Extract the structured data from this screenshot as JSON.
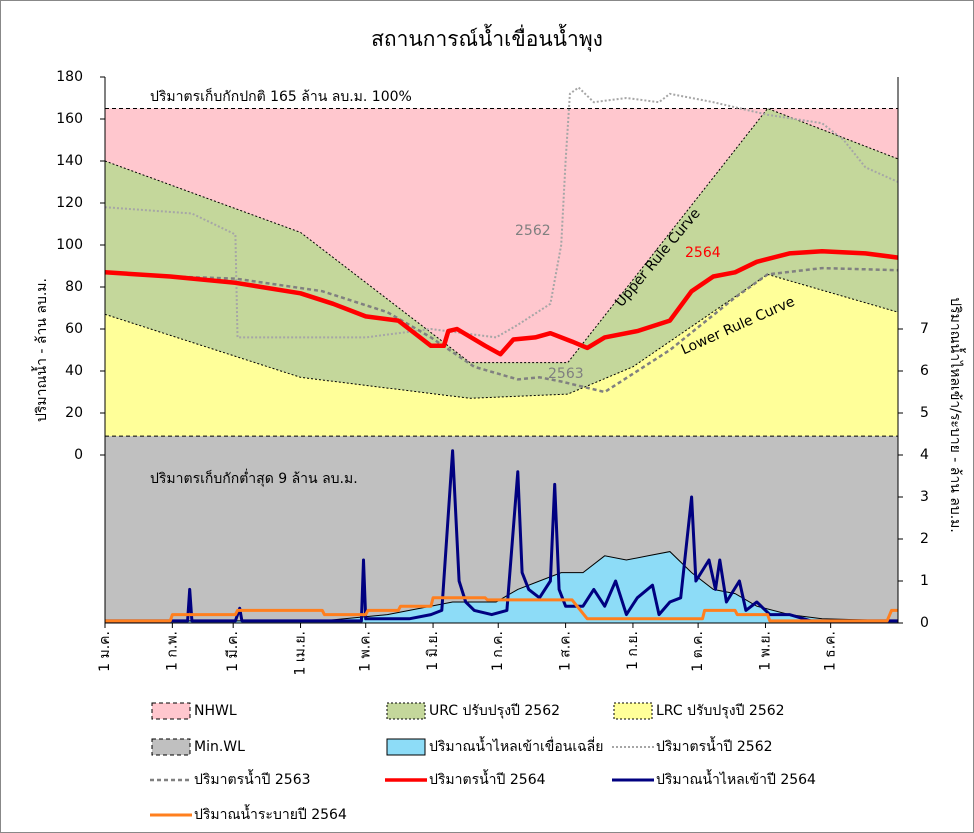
{
  "chart_data": {
    "type": "line",
    "title": "สถานการณ์น้ำเขื่อนน้ำพุง",
    "ylabel": "ปริมาณน้ำ - ล้าน ลบ.ม.",
    "y2label": "ปริมาณน้ำไหลเข้า/ระบาย - ล้าน ลบ.ม.",
    "annotations": [
      "ปริมาตรเก็บกักปกติ 165 ล้าน ลบ.ม. 100%",
      "ปริมาตรเก็บกักต่ำสุด 9 ล้าน ลบ.ม.",
      "2562",
      "2564",
      "2563",
      "Upper Rule Curve",
      "Lower Rule Curve"
    ],
    "xlim": [
      0,
      365
    ],
    "xticks": [
      {
        "value": 0,
        "label": "1 ม.ค."
      },
      {
        "value": 31,
        "label": "1 ก.พ."
      },
      {
        "value": 59,
        "label": "1 มี.ค."
      },
      {
        "value": 90,
        "label": "1 เม.ย."
      },
      {
        "value": 120,
        "label": "1 พ.ค."
      },
      {
        "value": 151,
        "label": "1 มิ.ย."
      },
      {
        "value": 181,
        "label": "1 ก.ค."
      },
      {
        "value": 212,
        "label": "1 ส.ค."
      },
      {
        "value": 243,
        "label": "1 ก.ย."
      },
      {
        "value": 273,
        "label": "1 ต.ค."
      },
      {
        "value": 304,
        "label": "1 พ.ย."
      },
      {
        "value": 334,
        "label": "1 ธ.ค."
      }
    ],
    "ylim": [
      -80,
      180
    ],
    "yticks": [
      0,
      20,
      40,
      60,
      80,
      100,
      120,
      140,
      160,
      180
    ],
    "y2lim": [
      0,
      13
    ],
    "y2ticks": [
      0,
      1,
      2,
      3,
      4,
      5,
      6,
      7
    ],
    "grid": false,
    "series": [
      {
        "name": "NHWL",
        "color": "#ffc7ce",
        "kind": "area",
        "outline": "dashed",
        "x": [
          0,
          365
        ],
        "values": [
          165,
          165
        ]
      },
      {
        "name": "URC ปรับปรุงปี 2562",
        "color": "#c4d79b",
        "kind": "area",
        "outline": "dotted",
        "x": [
          0,
          90,
          168,
          213,
          305,
          365
        ],
        "values": [
          140,
          106,
          44,
          44,
          165,
          141
        ]
      },
      {
        "name": "LRC ปรับปรุงปี 2562",
        "color": "#ffff99",
        "kind": "area",
        "outline": "dotted",
        "x": [
          0,
          90,
          168,
          213,
          243,
          305,
          365
        ],
        "values": [
          67,
          37,
          27,
          29,
          42,
          86,
          68
        ]
      },
      {
        "name": "Min.WL",
        "color": "#c0c0c0",
        "kind": "area",
        "outline": "dashed",
        "x": [
          0,
          365
        ],
        "values": [
          9,
          9
        ]
      },
      {
        "name": "ปริมาณน้ำไหลเข้าเขื่อนเฉลี่ย",
        "color": "#8ddcf7",
        "kind": "area",
        "outline": "solid",
        "axis": "y2",
        "x": [
          0,
          100,
          130,
          160,
          180,
          190,
          200,
          210,
          220,
          230,
          240,
          250,
          260,
          270,
          280,
          290,
          300,
          315,
          330,
          365
        ],
        "values": [
          0.05,
          0.05,
          0.2,
          0.5,
          0.5,
          0.8,
          1.0,
          1.2,
          1.2,
          1.6,
          1.5,
          1.6,
          1.7,
          1.2,
          0.8,
          0.7,
          0.4,
          0.2,
          0.1,
          0.05
        ]
      },
      {
        "name": "ปริมาตรน้ำปี 2562",
        "color": "#a6a6a6",
        "kind": "line",
        "dash": "dotted",
        "x": [
          0,
          40,
          60,
          61,
          120,
          150,
          180,
          190,
          205,
          210,
          212,
          214,
          218,
          225,
          240,
          255,
          260,
          280,
          305,
          330,
          340,
          350,
          365
        ],
        "values": [
          118,
          115,
          105,
          56,
          56,
          60,
          56,
          62,
          72,
          100,
          140,
          172,
          175,
          168,
          170,
          168,
          172,
          168,
          162,
          158,
          150,
          137,
          130
        ]
      },
      {
        "name": "ปริมาตรน้ำปี 2563",
        "color": "#808080",
        "kind": "line",
        "dash": "dashed",
        "x": [
          0,
          30,
          60,
          100,
          130,
          150,
          170,
          190,
          200,
          210,
          230,
          260,
          290,
          305,
          330,
          365
        ],
        "values": [
          87,
          85,
          84,
          78,
          68,
          56,
          42,
          36,
          37,
          35,
          30,
          50,
          75,
          86,
          89,
          88
        ]
      },
      {
        "name": "ปริมาตรน้ำปี 2564",
        "color": "#ff0000",
        "kind": "line",
        "x": [
          0,
          30,
          60,
          90,
          105,
          120,
          135,
          145,
          150,
          156,
          158,
          162,
          175,
          182,
          188,
          198,
          205,
          215,
          222,
          230,
          245,
          260,
          270,
          280,
          290,
          300,
          315,
          330,
          350,
          365
        ],
        "values": [
          87,
          85,
          82,
          77,
          72,
          66,
          64,
          56,
          52,
          52,
          59,
          60,
          52,
          48,
          55,
          56,
          58,
          54,
          51,
          56,
          59,
          64,
          78,
          85,
          87,
          92,
          96,
          97,
          96,
          94
        ]
      },
      {
        "name": "ปริมาณน้ำไหลเข้าปี 2564",
        "color": "#000080",
        "kind": "line",
        "axis": "y2",
        "x": [
          0,
          38,
          39,
          40,
          60,
          62,
          63,
          100,
          118,
          119,
          120,
          140,
          150,
          155,
          160,
          162,
          163,
          166,
          170,
          178,
          185,
          190,
          192,
          195,
          200,
          205,
          207,
          209,
          212,
          220,
          225,
          230,
          235,
          240,
          245,
          252,
          255,
          260,
          265,
          270,
          272,
          278,
          281,
          283,
          286,
          292,
          295,
          300,
          306,
          315,
          325,
          365
        ],
        "values": [
          0.05,
          0.05,
          0.8,
          0.05,
          0.05,
          0.35,
          0.05,
          0.05,
          0.05,
          1.5,
          0.1,
          0.1,
          0.2,
          0.3,
          4.1,
          2.0,
          1.0,
          0.5,
          0.3,
          0.2,
          0.3,
          3.6,
          1.2,
          0.8,
          0.6,
          1.0,
          3.3,
          0.8,
          0.4,
          0.4,
          0.8,
          0.4,
          1.0,
          0.2,
          0.6,
          0.9,
          0.2,
          0.5,
          0.6,
          3.0,
          1.0,
          1.5,
          0.8,
          1.5,
          0.5,
          1.0,
          0.3,
          0.5,
          0.2,
          0.2,
          0.05,
          0.05
        ]
      },
      {
        "name": "ปริมาณน้ำระบายปี 2564",
        "color": "#ff7f1e",
        "kind": "line",
        "axis": "y2",
        "x": [
          0,
          30,
          31,
          60,
          61,
          100,
          101,
          120,
          121,
          135,
          136,
          150,
          151,
          175,
          176,
          215,
          222,
          275,
          276,
          290,
          291,
          305,
          306,
          360,
          362,
          365
        ],
        "values": [
          0.05,
          0.05,
          0.2,
          0.2,
          0.3,
          0.3,
          0.2,
          0.2,
          0.3,
          0.3,
          0.4,
          0.4,
          0.6,
          0.6,
          0.55,
          0.55,
          0.1,
          0.1,
          0.3,
          0.3,
          0.2,
          0.2,
          0.05,
          0.05,
          0.3,
          0.3
        ]
      }
    ]
  }
}
